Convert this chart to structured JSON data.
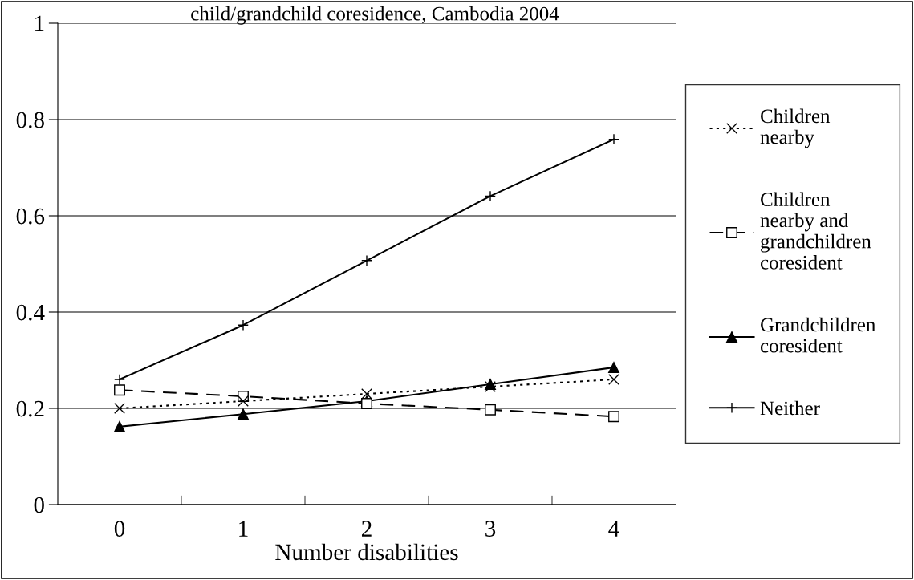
{
  "chart_data": {
    "type": "line",
    "title": "child/grandchild coresidence, Cambodia 2004",
    "xlabel": "Number disabilities",
    "categories": [
      "0",
      "1",
      "2",
      "3",
      "4"
    ],
    "series": [
      {
        "name": "Children nearby",
        "color": "#000000",
        "marker": "cross",
        "line_style": "dotted",
        "values": [
          0.2,
          0.215,
          0.23,
          0.245,
          0.26
        ]
      },
      {
        "name": "Children nearby and grandchildren coresident",
        "color": "#000000",
        "marker": "square",
        "line_style": "dashed",
        "values": [
          0.238,
          0.225,
          0.21,
          0.197,
          0.183
        ]
      },
      {
        "name": "Grandchildren coresident",
        "color": "#000000",
        "marker": "triangle",
        "line_style": "solid",
        "values": [
          0.162,
          0.188,
          0.215,
          0.25,
          0.285
        ]
      },
      {
        "name": "Neither",
        "color": "#000000",
        "marker": "plus",
        "line_style": "solid",
        "values": [
          0.26,
          0.373,
          0.507,
          0.641,
          0.759
        ]
      }
    ],
    "ylim": [
      0,
      1
    ],
    "yticks": [
      0,
      0.2,
      0.4,
      0.6,
      0.8,
      1
    ],
    "grid": "y",
    "legend": "right"
  }
}
